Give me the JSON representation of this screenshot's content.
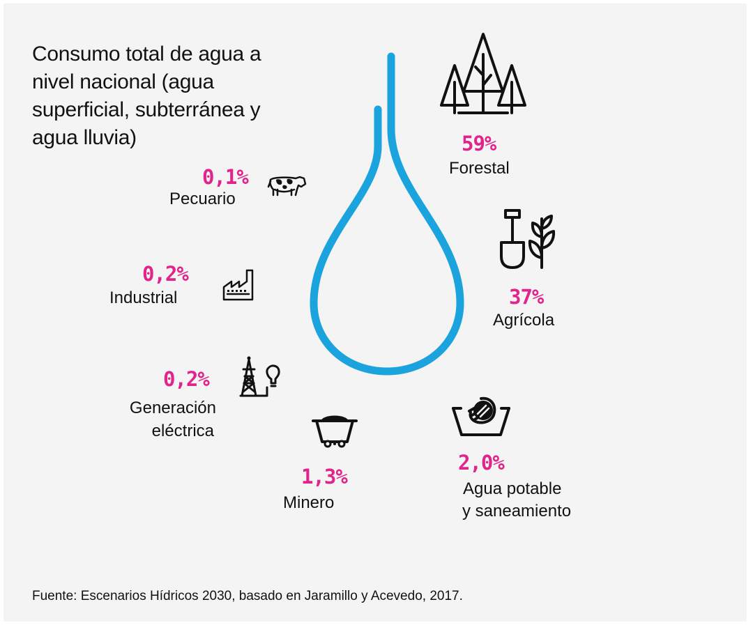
{
  "title": "Consumo total de agua a nivel nacional (agua superficial, subterránea y agua lluvia)",
  "source": "Fuente: Escenarios Hídricos 2030, basado en Jaramillo y Acevedo, 2017.",
  "colors": {
    "accent": "#e0248c",
    "water": "#1aa3dd",
    "text": "#111111",
    "background": "#f4f4f4"
  },
  "chart_data": {
    "type": "infographic",
    "title": "Consumo total de agua a nivel nacional (agua superficial, subterránea y agua lluvia)",
    "unit": "%",
    "categories": [
      {
        "key": "forestal",
        "label": "Forestal",
        "value_text": "59%",
        "value": 59,
        "icon": "trees-icon"
      },
      {
        "key": "agricola",
        "label": "Agrícola",
        "value_text": "37%",
        "value": 37,
        "icon": "shovel-plant-icon"
      },
      {
        "key": "agua_potable",
        "label": "Agua potable y saneamiento",
        "label_lines": [
          "Agua potable",
          "y saneamiento"
        ],
        "value_text": "2,0%",
        "value": 2.0,
        "icon": "hand-washing-basin-icon"
      },
      {
        "key": "minero",
        "label": "Minero",
        "value_text": "1,3%",
        "value": 1.3,
        "icon": "mining-cart-icon"
      },
      {
        "key": "generacion",
        "label": "Generación eléctrica",
        "label_lines": [
          "Generación",
          "eléctrica"
        ],
        "value_text": "0,2%",
        "value": 0.2,
        "icon": "power-tower-bulb-icon"
      },
      {
        "key": "industrial",
        "label": "Industrial",
        "value_text": "0,2%",
        "value": 0.2,
        "icon": "factory-icon"
      },
      {
        "key": "pecuario",
        "label": "Pecuario",
        "value_text": "0,1%",
        "value": 0.1,
        "icon": "cow-icon"
      }
    ]
  }
}
